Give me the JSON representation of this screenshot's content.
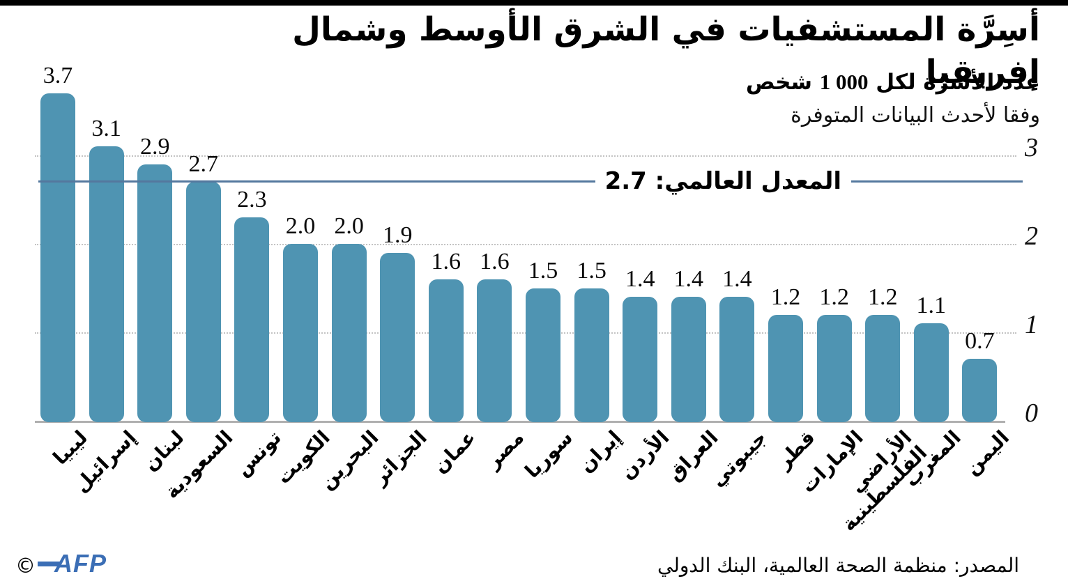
{
  "header": {
    "title": "أسِرَّة المستشفيات في الشرق الأوسط وشمال إفريقيا",
    "subtitle_prefix": "عدد الأسرّة لكل",
    "subtitle_number": "1 000",
    "subtitle_suffix": "شخص",
    "note": "وفقا لأحدث البيانات المتوفرة"
  },
  "chart_data": {
    "type": "bar",
    "title": "أسِرَّة المستشفيات في الشرق الأوسط وشمال إفريقيا",
    "subtitle": "عدد الأسرّة لكل 1 000 شخص",
    "note": "وفقا لأحدث البيانات المتوفرة",
    "categories": [
      "ليبيا",
      "إسرائيل",
      "لبنان",
      "السعودية",
      "تونس",
      "الكويت",
      "البحرين",
      "الجزائر",
      "عمان",
      "مصر",
      "سوريا",
      "إيران",
      "الأردن",
      "العراق",
      "جيبوتي",
      "قطر",
      "الإمارات",
      "الأراضي الفلسطينية",
      "المغرب",
      "اليمن"
    ],
    "display_categories": [
      "ليبيا",
      "إسرائيل",
      "لبنان",
      "السعودية",
      "تونس",
      "الكويت",
      "البحرين",
      "الجزائر",
      "عمان",
      "مصر",
      "سوريا",
      "إيران",
      "الأردن",
      "العراق",
      "جيبوتي",
      "قطر",
      "الإمارات",
      "الأراضي\nالفلسطينية",
      "المغرب",
      "اليمن"
    ],
    "values": [
      3.7,
      3.1,
      2.9,
      2.7,
      2.3,
      2.0,
      2.0,
      1.9,
      1.6,
      1.6,
      1.5,
      1.5,
      1.4,
      1.4,
      1.4,
      1.2,
      1.2,
      1.2,
      1.1,
      0.7
    ],
    "value_labels": [
      "3.7",
      "3.1",
      "2.9",
      "2.7",
      "2.3",
      "2.0",
      "2.0",
      "1.9",
      "1.6",
      "1.6",
      "1.5",
      "1.5",
      "1.4",
      "1.4",
      "1.4",
      "1.2",
      "1.2",
      "1.2",
      "1.1",
      "0.7"
    ],
    "y_ticks": [
      3,
      2,
      1,
      0
    ],
    "grid_values": [
      3,
      2,
      1
    ],
    "ylim": [
      0,
      3.9
    ],
    "grid": "dotted-horizontal",
    "legend_position": "none",
    "reference_line": {
      "value": 2.7,
      "label": "المعدل العالمي: 2.7"
    },
    "bar_color": "#4F94B2",
    "reference_line_color": "#54789E",
    "xlabel": "",
    "ylabel": ""
  },
  "footer": {
    "source": "المصدر: منظمة الصحة العالمية، البنك الدولي",
    "copyright": "©",
    "logo_text": "AFP",
    "logo_color": "#3B6EB5"
  }
}
